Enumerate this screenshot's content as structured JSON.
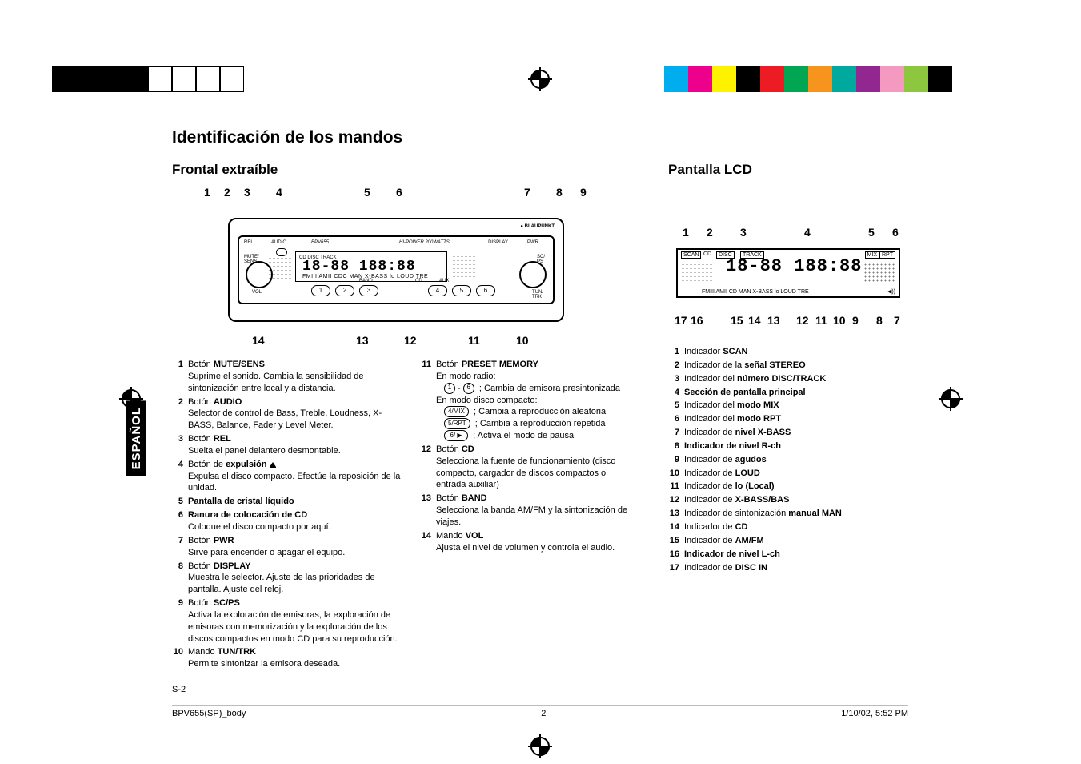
{
  "color_bars": {
    "left": [
      "#000000",
      "#000000",
      "#000000",
      "#000000",
      "#ffffff",
      "#ffffff",
      "#ffffff",
      "#ffffff"
    ],
    "right": [
      "#00aeef",
      "#ec008c",
      "#fff200",
      "#000000",
      "#ed1c24",
      "#00a651",
      "#f7941d",
      "#00a99d",
      "#92278f",
      "#f49ac1",
      "#8dc63f",
      "#000000"
    ],
    "swatch_w": 30
  },
  "sidetab": "ESPAÑOL",
  "page": {
    "title": "Identificación de los mandos",
    "left_heading": "Frontal extraíble",
    "right_heading": "Pantalla LCD",
    "page_code": "S-2"
  },
  "front_callouts": {
    "top": [
      "1",
      "2",
      "3",
      "4",
      "5",
      "6",
      "7",
      "8",
      "9"
    ],
    "bottom": [
      "14",
      "13",
      "12",
      "11",
      "10"
    ]
  },
  "lcd_callouts": {
    "top": [
      "1",
      "2",
      "3",
      "4",
      "5",
      "6"
    ],
    "bottom": [
      "17",
      "16",
      "15",
      "14",
      "13",
      "12",
      "11",
      "10",
      "9",
      "8",
      "7"
    ]
  },
  "lcd_tags": {
    "row_top": "SCAN  CD  DISC  TRACK",
    "row_mix": "MIX  RPT",
    "row_bottom": "FMIII AMII CD   MAN X-BASS lo LOUD TRE"
  },
  "radio_brand": "BLAUPUNKT",
  "radio_labels": {
    "rel": "REL",
    "audio": "AUDIO",
    "bpv655": "BPV655",
    "hipower": "HI-POWER 200WATTS",
    "display": "DISPLAY",
    "pwr": "PWR",
    "mute": "MUTE/\nSENS",
    "vol": "VOL",
    "band": "BAND",
    "cd": "CD",
    "aux": "AUX",
    "tun": "TUN/\nTRK",
    "sc": "SC/\nPS"
  },
  "segment_text": "18-88 188:88",
  "segment_sub": "FMIII AMII CDC MAN X-BASS lo LOUD TRE",
  "colA": [
    {
      "n": "1",
      "title_pre": "Botón ",
      "title_bold": "MUTE/SENS",
      "desc": "Suprime el sonido. Cambia la sensibilidad de sintonización entre local y a distancia."
    },
    {
      "n": "2",
      "title_pre": "Botón ",
      "title_bold": "AUDIO",
      "desc": "Selector de control de Bass, Treble, Loudness, X-BASS, Balance, Fader y Level Meter."
    },
    {
      "n": "3",
      "title_pre": "Botón ",
      "title_bold": "REL",
      "desc": "Suelta el panel delantero desmontable."
    },
    {
      "n": "4",
      "title_pre": "Botón de ",
      "title_bold": "expulsión ",
      "eject": true,
      "desc": "Expulsa el disco compacto. Efectúe la reposición de la unidad."
    },
    {
      "n": "5",
      "title_bold": "Pantalla de cristal líquido"
    },
    {
      "n": "6",
      "title_bold": "Ranura de colocación de CD",
      "desc": "Coloque el disco compacto por aquí."
    },
    {
      "n": "7",
      "title_pre": "Botón ",
      "title_bold": "PWR",
      "desc": "Sirve para encender o apagar el equipo."
    },
    {
      "n": "8",
      "title_pre": "Botón ",
      "title_bold": "DISPLAY",
      "desc": "Muestra le selector. Ajuste de las prioridades de pantalla. Ajuste del reloj."
    },
    {
      "n": "9",
      "title_pre": "Botón ",
      "title_bold": "SC/PS",
      "desc": "Activa la exploración de emisoras, la exploración de emisoras con memorización y la exploración de los discos compactos en modo CD para su reproducción."
    },
    {
      "n": "10",
      "title_pre": "Mando ",
      "title_bold": "TUN/TRK",
      "desc": "Permite sintonizar la emisora deseada."
    }
  ],
  "colB": {
    "item11_title_pre": "Botón ",
    "item11_title_bold": "PRESET MEMORY",
    "item11_radio_label": "En modo radio:",
    "item11_radio_desc": ";  Cambia de emisora presintonizada",
    "item11_cd_label": "En modo disco compacto:",
    "key_mix": "4/MIX",
    "key_mix_desc": ";  Cambia a reproducción aleatoria",
    "key_rpt": "5/RPT",
    "key_rpt_desc": ";  Cambia a reproducción repetida",
    "key_pause": "6/ ▶",
    "key_pause_desc": ";  Activa el modo de pausa",
    "item12_title_pre": "Botón ",
    "item12_title_bold": "CD",
    "item12_desc": "Selecciona la fuente de funcionamiento (disco compacto, cargador de discos compactos o entrada auxiliar)",
    "item13_title_pre": "Botón ",
    "item13_title_bold": "BAND",
    "item13_desc": "Selecciona la banda AM/FM y la sintonización de viajes.",
    "item14_title_pre": "Mando ",
    "item14_title_bold": "VOL",
    "item14_desc": "Ajusta el nivel de volumen y controla el audio."
  },
  "colC": [
    {
      "n": "1",
      "pre": "Indicador ",
      "bold": "SCAN"
    },
    {
      "n": "2",
      "pre": "Indicador de la ",
      "bold": "señal STEREO"
    },
    {
      "n": "3",
      "pre": "Indicador del ",
      "bold": "número DISC/TRACK"
    },
    {
      "n": "4",
      "bold": "Sección de pantalla principal"
    },
    {
      "n": "5",
      "pre": "Indicador del ",
      "bold": "modo MIX"
    },
    {
      "n": "6",
      "pre": "Indicador del ",
      "bold": "modo RPT"
    },
    {
      "n": "7",
      "pre": "Indicador de ",
      "bold": "nivel X-BASS"
    },
    {
      "n": "8",
      "bold": "Indicador de nivel R-ch"
    },
    {
      "n": "9",
      "pre": "Indicador de ",
      "bold": "agudos"
    },
    {
      "n": "10",
      "pre": "Indicador de ",
      "bold": "LOUD"
    },
    {
      "n": "11",
      "pre": "Indicador de ",
      "bold": "lo (Local)"
    },
    {
      "n": "12",
      "pre": "Indicador de ",
      "bold": "X-BASS/BAS"
    },
    {
      "n": "13",
      "pre": "Indicador de sintonización ",
      "bold": "manual MAN"
    },
    {
      "n": "14",
      "pre": "Indicador de ",
      "bold": "CD"
    },
    {
      "n": "15",
      "pre": "Indicador de ",
      "bold": "AM/FM"
    },
    {
      "n": "16",
      "bold": "Indicador de nivel L-ch"
    },
    {
      "n": "17",
      "pre": "Indicador de ",
      "bold": "DISC IN"
    }
  ],
  "footer": {
    "file": "BPV655(SP)_body",
    "pg": "2",
    "date": "1/10/02, 5:52 PM"
  }
}
